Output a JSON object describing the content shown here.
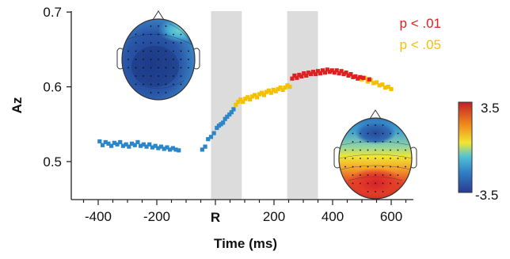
{
  "chart_data": {
    "type": "scatter",
    "xlabel": "Time (ms)",
    "ylabel": "Az",
    "xlim": [
      -490,
      680
    ],
    "ylim": [
      0.44,
      0.705
    ],
    "x_ticks": [
      {
        "value": -400,
        "label": "-400"
      },
      {
        "value": -200,
        "label": "-200"
      },
      {
        "value": 0,
        "label": "R"
      },
      {
        "value": 200,
        "label": "200"
      },
      {
        "value": 400,
        "label": "400"
      },
      {
        "value": 600,
        "label": "600"
      }
    ],
    "y_ticks": [
      {
        "value": 0.5,
        "label": "0.5"
      },
      {
        "value": 0.6,
        "label": "0.6"
      },
      {
        "value": 0.7,
        "label": "0.7"
      }
    ],
    "shaded_intervals": [
      [
        -15,
        90
      ],
      [
        245,
        350
      ]
    ],
    "significance_legend": [
      {
        "label": "p < .01",
        "color": "#e02020"
      },
      {
        "label": "p < .05",
        "color": "#f5c000"
      }
    ],
    "colorbar": {
      "max_label": "3.5",
      "min_label": "-3.5",
      "colors": [
        "#2b3a92",
        "#2e7fc4",
        "#54c2d6",
        "#f2e631",
        "#f08a1c",
        "#c21f25"
      ]
    },
    "series": [
      {
        "class": "n.s.",
        "color": "#2a86c9",
        "points": [
          [
            -395,
            0.527
          ],
          [
            -385,
            0.522
          ],
          [
            -375,
            0.526
          ],
          [
            -365,
            0.524
          ],
          [
            -355,
            0.521
          ],
          [
            -345,
            0.525
          ],
          [
            -335,
            0.523
          ],
          [
            -325,
            0.526
          ],
          [
            -315,
            0.521
          ],
          [
            -305,
            0.523
          ],
          [
            -295,
            0.52
          ],
          [
            -285,
            0.524
          ],
          [
            -275,
            0.522
          ],
          [
            -265,
            0.526
          ],
          [
            -255,
            0.521
          ],
          [
            -245,
            0.523
          ],
          [
            -235,
            0.52
          ],
          [
            -225,
            0.523
          ],
          [
            -215,
            0.519
          ],
          [
            -205,
            0.521
          ],
          [
            -195,
            0.518
          ],
          [
            -185,
            0.52
          ],
          [
            -175,
            0.517
          ],
          [
            -165,
            0.519
          ],
          [
            -155,
            0.516
          ],
          [
            -145,
            0.518
          ],
          [
            -135,
            0.516
          ],
          [
            -125,
            0.515
          ],
          [
            -45,
            0.516
          ],
          [
            -35,
            0.52
          ],
          [
            -25,
            0.53
          ],
          [
            -15,
            0.533
          ],
          [
            -5,
            0.538
          ],
          [
            5,
            0.545
          ],
          [
            12,
            0.548
          ],
          [
            19,
            0.55
          ],
          [
            26,
            0.552
          ],
          [
            33,
            0.557
          ],
          [
            40,
            0.56
          ],
          [
            48,
            0.563
          ],
          [
            55,
            0.566
          ],
          [
            62,
            0.57
          ]
        ]
      },
      {
        "class": "p < .05",
        "color": "#f5c000",
        "points": [
          [
            70,
            0.576
          ],
          [
            78,
            0.58
          ],
          [
            86,
            0.583
          ],
          [
            94,
            0.58
          ],
          [
            102,
            0.584
          ],
          [
            110,
            0.586
          ],
          [
            118,
            0.583
          ],
          [
            126,
            0.587
          ],
          [
            134,
            0.589
          ],
          [
            142,
            0.586
          ],
          [
            150,
            0.59
          ],
          [
            158,
            0.592
          ],
          [
            166,
            0.589
          ],
          [
            174,
            0.593
          ],
          [
            182,
            0.595
          ],
          [
            190,
            0.592
          ],
          [
            198,
            0.596
          ],
          [
            206,
            0.594
          ],
          [
            214,
            0.597
          ],
          [
            222,
            0.599
          ],
          [
            230,
            0.596
          ],
          [
            238,
            0.599
          ],
          [
            246,
            0.602
          ],
          [
            254,
            0.6
          ],
          [
            500,
            0.61
          ],
          [
            510,
            0.612
          ],
          [
            520,
            0.607
          ],
          [
            530,
            0.609
          ],
          [
            540,
            0.605
          ],
          [
            550,
            0.606
          ],
          [
            560,
            0.602
          ],
          [
            570,
            0.603
          ],
          [
            580,
            0.599
          ],
          [
            590,
            0.6
          ],
          [
            600,
            0.597
          ]
        ]
      },
      {
        "class": "p < .01",
        "color": "#e02020",
        "points": [
          [
            262,
            0.611
          ],
          [
            270,
            0.615
          ],
          [
            278,
            0.612
          ],
          [
            286,
            0.616
          ],
          [
            294,
            0.614
          ],
          [
            302,
            0.618
          ],
          [
            310,
            0.615
          ],
          [
            318,
            0.619
          ],
          [
            326,
            0.617
          ],
          [
            334,
            0.62
          ],
          [
            342,
            0.617
          ],
          [
            350,
            0.621
          ],
          [
            358,
            0.618
          ],
          [
            366,
            0.622
          ],
          [
            374,
            0.619
          ],
          [
            382,
            0.623
          ],
          [
            390,
            0.62
          ],
          [
            398,
            0.622
          ],
          [
            406,
            0.619
          ],
          [
            414,
            0.622
          ],
          [
            422,
            0.618
          ],
          [
            430,
            0.621
          ],
          [
            438,
            0.617
          ],
          [
            446,
            0.619
          ],
          [
            454,
            0.615
          ],
          [
            462,
            0.617
          ],
          [
            470,
            0.613
          ],
          [
            478,
            0.614
          ],
          [
            486,
            0.611
          ],
          [
            494,
            0.613
          ],
          [
            505,
            0.612
          ],
          [
            525,
            0.61
          ]
        ]
      }
    ]
  }
}
